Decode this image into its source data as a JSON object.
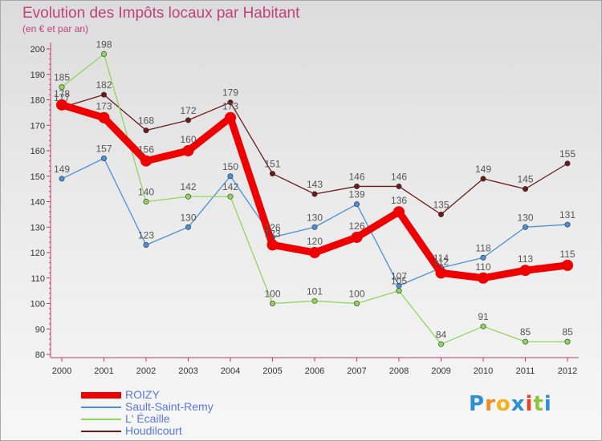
{
  "header": {
    "title": "Evolution des Impôts locaux par Habitant",
    "subtitle": "(en € et par an)"
  },
  "logo": {
    "letters": [
      "P",
      "r",
      "o",
      "x",
      "i",
      "t",
      "i"
    ],
    "colors": [
      "#2f8fd6",
      "#f28a1e",
      "#f2b21e",
      "#2f8fd6",
      "#e8402a",
      "#8cc63f",
      "#2f8fd6"
    ]
  },
  "chart_data": {
    "type": "line",
    "title": "Evolution des Impôts locaux par Habitant",
    "subtitle": "(en € et par an)",
    "xlabel": "",
    "ylabel": "",
    "x": [
      "2000",
      "2001",
      "2002",
      "2003",
      "2004",
      "2005",
      "2006",
      "2007",
      "2008",
      "2009",
      "2010",
      "2011",
      "2012"
    ],
    "ylim": [
      80,
      200
    ],
    "yticks": [
      80,
      90,
      100,
      110,
      120,
      130,
      140,
      150,
      160,
      170,
      180,
      190,
      200
    ],
    "grid": false,
    "legend_position": "bottom-left",
    "series": [
      {
        "name": "Houdilcourt",
        "color": "#6b1a1a",
        "weight": "normal",
        "values": [
          177,
          182,
          168,
          172,
          179,
          151,
          143,
          146,
          146,
          135,
          149,
          145,
          155
        ],
        "labels": [
          "177",
          "182",
          "168",
          "172",
          "179",
          "151",
          "143",
          "146",
          "146",
          "135",
          "149",
          "145",
          "155"
        ]
      },
      {
        "name": "Sault-Saint-Remy",
        "color": "#4a90d9",
        "weight": "normal",
        "values": [
          149,
          157,
          123,
          130,
          150,
          126,
          130,
          139,
          107,
          114,
          118,
          130,
          131
        ],
        "labels": [
          "149",
          "157",
          "123",
          "130",
          "150",
          "126",
          "130",
          "139",
          "107",
          "114",
          "118",
          "130",
          "131"
        ]
      },
      {
        "name": "L' Écaille",
        "color": "#8fd65a",
        "weight": "normal",
        "values": [
          185,
          198,
          140,
          142,
          142,
          100,
          101,
          100,
          105,
          84,
          91,
          85,
          85
        ],
        "labels": [
          "185",
          "198",
          "140",
          "142",
          "142",
          "100",
          "101",
          "100",
          "105",
          "84",
          "91",
          "85",
          "85"
        ]
      },
      {
        "name": "ROIZY",
        "color": "#ee0000",
        "weight": "bold",
        "values": [
          178,
          173,
          156,
          160,
          173,
          123,
          120,
          126,
          136,
          112,
          110,
          113,
          115
        ],
        "labels": [
          "178",
          "173",
          "156",
          "160",
          "173",
          "123",
          "120",
          "126",
          "136",
          "112",
          "110",
          "113",
          "115"
        ]
      }
    ],
    "legend": [
      "ROIZY",
      "Sault-Saint-Remy",
      "L' Écaille",
      "Houdilcourt"
    ]
  }
}
